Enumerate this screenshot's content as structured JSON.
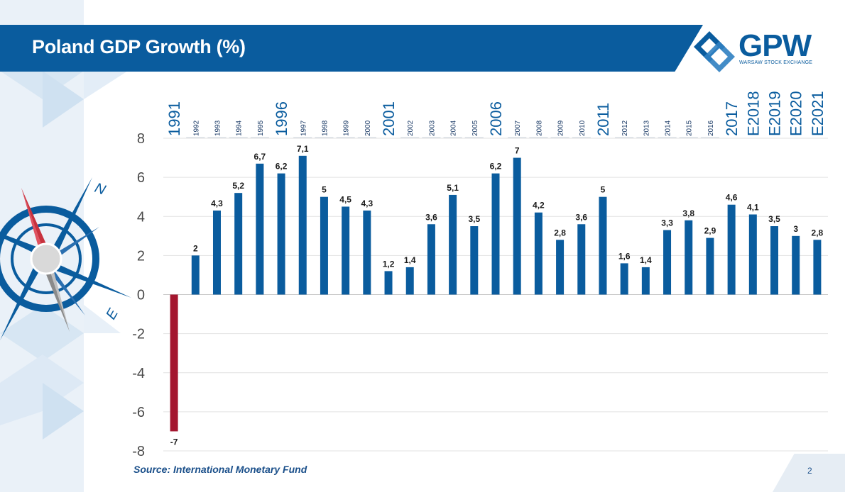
{
  "header": {
    "title": "Poland GDP Growth (%)"
  },
  "logo": {
    "name": "GPW",
    "subtitle": "WARSAW STOCK EXCHANGE"
  },
  "compass": {
    "north_label": "N",
    "east_label": "E"
  },
  "footer": {
    "source": "Source: International Monetary Fund",
    "page_number": "2"
  },
  "colors": {
    "positive_bar": "#0a5c9e",
    "negative_bar": "#a4162f",
    "title_band": "#0a5c9e",
    "accent_text": "#1a4f8a"
  },
  "chart_data": {
    "type": "bar",
    "title": "Poland GDP Growth (%)",
    "categories": [
      "1991",
      "1992",
      "1993",
      "1994",
      "1995",
      "1996",
      "1997",
      "1998",
      "1999",
      "2000",
      "2001",
      "2002",
      "2003",
      "2004",
      "2005",
      "2006",
      "2007",
      "2008",
      "2009",
      "2010",
      "2011",
      "2012",
      "2013",
      "2014",
      "2015",
      "2016",
      "2017",
      "E2018",
      "E2019",
      "E2020",
      "E2021"
    ],
    "values": [
      -7,
      2,
      4.3,
      5.2,
      6.7,
      6.2,
      7.1,
      5,
      4.5,
      4.3,
      1.2,
      1.4,
      3.6,
      5.1,
      3.5,
      6.2,
      7,
      4.2,
      2.8,
      3.6,
      5,
      1.6,
      1.4,
      3.3,
      3.8,
      2.9,
      4.6,
      4.1,
      3.5,
      3,
      2.8
    ],
    "value_labels": [
      "-7",
      "2",
      "4,3",
      "5,2",
      "6,7",
      "6,2",
      "7,1",
      "5",
      "4,5",
      "4,3",
      "1,2",
      "1,4",
      "3,6",
      "5,1",
      "3,5",
      "6,2",
      "7",
      "4,2",
      "2,8",
      "3,6",
      "5",
      "1,6",
      "1,4",
      "3,3",
      "3,8",
      "2,9",
      "4,6",
      "4,1",
      "3,5",
      "3",
      "2,8"
    ],
    "large_labels": [
      "1991",
      "1996",
      "2001",
      "2006",
      "2011",
      "2017",
      "E2018",
      "E2019",
      "E2020",
      "E2021"
    ],
    "ylim": [
      -8,
      8
    ],
    "yticks": [
      8,
      6,
      4,
      2,
      0,
      -2,
      -4,
      -6,
      -8
    ],
    "grid": true,
    "xlabel": "",
    "ylabel": ""
  }
}
